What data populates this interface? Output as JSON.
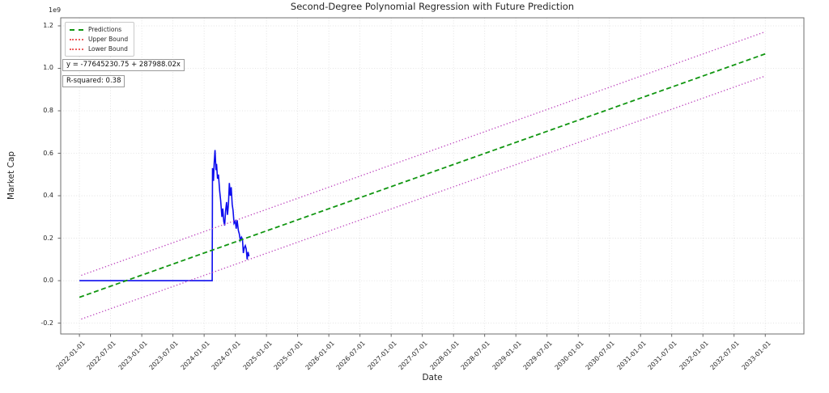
{
  "chart_data": {
    "type": "line",
    "title": "Second-Degree Polynomial Regression with Future Prediction",
    "xlabel": "Date",
    "ylabel": "Market Cap",
    "y_offset_label": "1e9",
    "grid": true,
    "legend_position": "upper left",
    "xlim": [
      2021.7,
      2033.62
    ],
    "ylim": [
      -0.251,
      1.238
    ],
    "x_ticks": [
      {
        "label": "2022-01-01",
        "v": 2022.0
      },
      {
        "label": "2022-07-01",
        "v": 2022.5
      },
      {
        "label": "2023-01-01",
        "v": 2023.0
      },
      {
        "label": "2023-07-01",
        "v": 2023.5
      },
      {
        "label": "2024-01-01",
        "v": 2024.0
      },
      {
        "label": "2024-07-01",
        "v": 2024.5
      },
      {
        "label": "2025-01-01",
        "v": 2025.0
      },
      {
        "label": "2025-07-01",
        "v": 2025.5
      },
      {
        "label": "2026-01-01",
        "v": 2026.0
      },
      {
        "label": "2026-07-01",
        "v": 2026.5
      },
      {
        "label": "2027-01-01",
        "v": 2027.0
      },
      {
        "label": "2027-07-01",
        "v": 2027.5
      },
      {
        "label": "2028-01-01",
        "v": 2028.0
      },
      {
        "label": "2028-07-01",
        "v": 2028.5
      },
      {
        "label": "2029-01-01",
        "v": 2029.0
      },
      {
        "label": "2029-07-01",
        "v": 2029.5
      },
      {
        "label": "2030-01-01",
        "v": 2030.0
      },
      {
        "label": "2030-07-01",
        "v": 2030.5
      },
      {
        "label": "2031-01-01",
        "v": 2031.0
      },
      {
        "label": "2031-07-01",
        "v": 2031.5
      },
      {
        "label": "2032-01-01",
        "v": 2032.0
      },
      {
        "label": "2032-07-01",
        "v": 2032.5
      },
      {
        "label": "2033-01-01",
        "v": 2033.0
      }
    ],
    "y_ticks": [
      {
        "label": "-0.2",
        "v": -0.2
      },
      {
        "label": "0.0",
        "v": 0.0
      },
      {
        "label": "0.2",
        "v": 0.2
      },
      {
        "label": "0.4",
        "v": 0.4
      },
      {
        "label": "0.6",
        "v": 0.6
      },
      {
        "label": "0.8",
        "v": 0.8
      },
      {
        "label": "1.0",
        "v": 1.0
      },
      {
        "label": "1.2",
        "v": 1.2
      }
    ],
    "series": [
      {
        "name": "market-cap-actual",
        "color": "#0d0dee",
        "width": 1.6,
        "dash": null,
        "points": [
          [
            2022.0,
            0.0
          ],
          [
            2024.13,
            0.0
          ],
          [
            2024.135,
            0.53
          ],
          [
            2024.15,
            0.47
          ],
          [
            2024.16,
            0.55
          ],
          [
            2024.175,
            0.615
          ],
          [
            2024.19,
            0.52
          ],
          [
            2024.2,
            0.55
          ],
          [
            2024.215,
            0.48
          ],
          [
            2024.23,
            0.5
          ],
          [
            2024.25,
            0.42
          ],
          [
            2024.265,
            0.38
          ],
          [
            2024.285,
            0.3
          ],
          [
            2024.3,
            0.34
          ],
          [
            2024.315,
            0.28
          ],
          [
            2024.33,
            0.26
          ],
          [
            2024.345,
            0.33
          ],
          [
            2024.36,
            0.37
          ],
          [
            2024.375,
            0.31
          ],
          [
            2024.39,
            0.36
          ],
          [
            2024.405,
            0.46
          ],
          [
            2024.42,
            0.4
          ],
          [
            2024.435,
            0.44
          ],
          [
            2024.45,
            0.36
          ],
          [
            2024.465,
            0.33
          ],
          [
            2024.48,
            0.27
          ],
          [
            2024.5,
            0.28
          ],
          [
            2024.515,
            0.245
          ],
          [
            2024.53,
            0.285
          ],
          [
            2024.55,
            0.235
          ],
          [
            2024.565,
            0.22
          ],
          [
            2024.58,
            0.19
          ],
          [
            2024.6,
            0.205
          ],
          [
            2024.615,
            0.195
          ],
          [
            2024.63,
            0.13
          ],
          [
            2024.645,
            0.155
          ],
          [
            2024.66,
            0.165
          ],
          [
            2024.675,
            0.15
          ],
          [
            2024.69,
            0.1
          ],
          [
            2024.705,
            0.135
          ],
          [
            2024.72,
            0.115
          ]
        ]
      },
      {
        "name": "predictions",
        "color": "#119611",
        "width": 1.8,
        "dash": "6 3.5",
        "points": [
          [
            2022.0,
            -0.078
          ],
          [
            2033.0,
            1.068
          ]
        ]
      },
      {
        "name": "upper-bound",
        "color": "#bb3ebb",
        "width": 1.3,
        "dash": "1.3 2.6",
        "points": [
          [
            2022.03,
            0.025
          ],
          [
            2033.0,
            1.172
          ]
        ]
      },
      {
        "name": "lower-bound",
        "color": "#bb3ebb",
        "width": 1.3,
        "dash": "1.3 2.6",
        "points": [
          [
            2022.03,
            -0.181
          ],
          [
            2033.0,
            0.964
          ]
        ]
      }
    ],
    "legend": {
      "entries": [
        {
          "label": "Predictions",
          "color": "#119611",
          "style": "dashed"
        },
        {
          "label": "Upper Bound",
          "color": "#ee5f5f",
          "style": "dotted"
        },
        {
          "label": "Lower Bound",
          "color": "#ee5f5f",
          "style": "dotted"
        }
      ]
    },
    "annotations": {
      "equation": "y = -77645230.75 + 287988.02x",
      "r_squared": "R-squared: 0.38"
    }
  }
}
